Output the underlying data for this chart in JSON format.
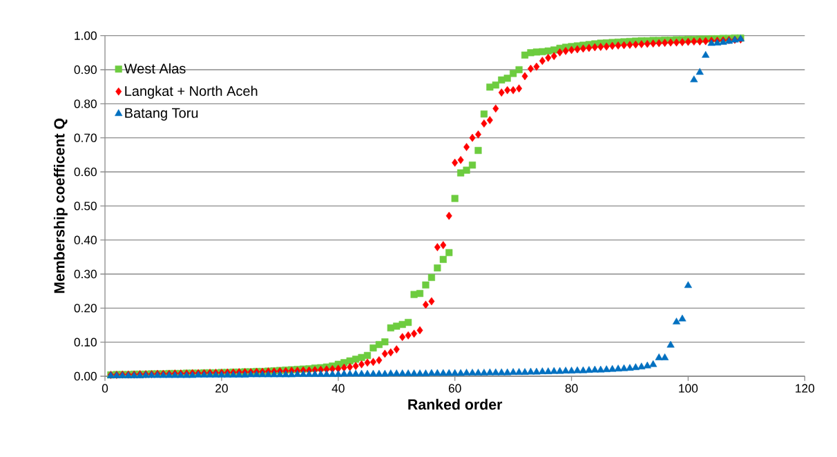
{
  "chart_data": {
    "type": "scatter",
    "xlabel": "Ranked order",
    "ylabel": "Membership coefficent Q",
    "x": [
      1,
      2,
      3,
      4,
      5,
      6,
      7,
      8,
      9,
      10,
      11,
      12,
      13,
      14,
      15,
      16,
      17,
      18,
      19,
      20,
      21,
      22,
      23,
      24,
      25,
      26,
      27,
      28,
      29,
      30,
      31,
      32,
      33,
      34,
      35,
      36,
      37,
      38,
      39,
      40,
      41,
      42,
      43,
      44,
      45,
      46,
      47,
      48,
      49,
      50,
      51,
      52,
      53,
      54,
      55,
      56,
      57,
      58,
      59,
      60,
      61,
      62,
      63,
      64,
      65,
      66,
      67,
      68,
      69,
      70,
      71,
      72,
      73,
      74,
      75,
      76,
      77,
      78,
      79,
      80,
      81,
      82,
      83,
      84,
      85,
      86,
      87,
      88,
      89,
      90,
      91,
      92,
      93,
      94,
      95,
      96,
      97,
      98,
      99,
      100,
      101,
      102,
      103,
      104,
      105,
      106,
      107,
      108,
      109
    ],
    "series": [
      {
        "name": "West Alas",
        "color": "#6dcc3f",
        "marker": "square",
        "values": [
          0.004,
          0.005,
          0.005,
          0.005,
          0.006,
          0.006,
          0.006,
          0.007,
          0.007,
          0.007,
          0.008,
          0.008,
          0.008,
          0.009,
          0.009,
          0.009,
          0.01,
          0.01,
          0.01,
          0.011,
          0.011,
          0.012,
          0.012,
          0.013,
          0.013,
          0.014,
          0.014,
          0.015,
          0.016,
          0.017,
          0.018,
          0.019,
          0.02,
          0.021,
          0.022,
          0.024,
          0.025,
          0.027,
          0.03,
          0.035,
          0.04,
          0.045,
          0.05,
          0.055,
          0.061,
          0.083,
          0.093,
          0.101,
          0.142,
          0.147,
          0.152,
          0.158,
          0.24,
          0.243,
          0.268,
          0.29,
          0.318,
          0.343,
          0.363,
          0.522,
          0.597,
          0.605,
          0.62,
          0.663,
          0.77,
          0.849,
          0.855,
          0.87,
          0.875,
          0.889,
          0.9,
          0.943,
          0.95,
          0.952,
          0.953,
          0.955,
          0.958,
          0.963,
          0.966,
          0.968,
          0.97,
          0.972,
          0.974,
          0.976,
          0.978,
          0.979,
          0.98,
          0.981,
          0.982,
          0.983,
          0.984,
          0.985,
          0.985,
          0.986,
          0.986,
          0.987,
          0.987,
          0.988,
          0.988,
          0.989,
          0.989,
          0.99,
          0.99,
          0.991,
          0.991,
          0.992,
          0.992,
          0.993,
          0.993
        ]
      },
      {
        "name": "Langkat + North Aceh",
        "color": "#ff0000",
        "marker": "diamond",
        "values": [
          0.004,
          0.004,
          0.005,
          0.005,
          0.005,
          0.006,
          0.006,
          0.006,
          0.007,
          0.007,
          0.007,
          0.008,
          0.008,
          0.008,
          0.009,
          0.009,
          0.009,
          0.01,
          0.01,
          0.01,
          0.011,
          0.011,
          0.012,
          0.012,
          0.012,
          0.013,
          0.013,
          0.014,
          0.014,
          0.015,
          0.015,
          0.016,
          0.016,
          0.017,
          0.017,
          0.018,
          0.019,
          0.02,
          0.021,
          0.022,
          0.025,
          0.027,
          0.03,
          0.035,
          0.04,
          0.042,
          0.047,
          0.066,
          0.07,
          0.079,
          0.115,
          0.12,
          0.125,
          0.135,
          0.21,
          0.22,
          0.379,
          0.385,
          0.471,
          0.627,
          0.635,
          0.673,
          0.7,
          0.71,
          0.742,
          0.752,
          0.786,
          0.833,
          0.84,
          0.84,
          0.845,
          0.881,
          0.903,
          0.909,
          0.926,
          0.935,
          0.94,
          0.951,
          0.955,
          0.958,
          0.96,
          0.962,
          0.964,
          0.966,
          0.967,
          0.968,
          0.97,
          0.971,
          0.972,
          0.973,
          0.974,
          0.975,
          0.976,
          0.977,
          0.978,
          0.979,
          0.98,
          0.98,
          0.981,
          0.982,
          0.983,
          0.983,
          0.984,
          0.985,
          0.985,
          0.986,
          0.987,
          0.988,
          0.989
        ]
      },
      {
        "name": "Batang Toru",
        "color": "#0070c0",
        "marker": "triangle",
        "values": [
          0.001,
          0.001,
          0.001,
          0.001,
          0.001,
          0.001,
          0.002,
          0.002,
          0.002,
          0.002,
          0.002,
          0.002,
          0.002,
          0.002,
          0.002,
          0.003,
          0.003,
          0.003,
          0.003,
          0.003,
          0.003,
          0.003,
          0.003,
          0.003,
          0.004,
          0.004,
          0.004,
          0.004,
          0.004,
          0.004,
          0.004,
          0.004,
          0.005,
          0.005,
          0.005,
          0.005,
          0.005,
          0.005,
          0.005,
          0.005,
          0.006,
          0.006,
          0.006,
          0.006,
          0.006,
          0.006,
          0.006,
          0.006,
          0.007,
          0.007,
          0.007,
          0.007,
          0.007,
          0.007,
          0.007,
          0.008,
          0.008,
          0.008,
          0.008,
          0.008,
          0.008,
          0.009,
          0.009,
          0.009,
          0.009,
          0.01,
          0.01,
          0.01,
          0.01,
          0.011,
          0.011,
          0.011,
          0.012,
          0.012,
          0.013,
          0.013,
          0.014,
          0.014,
          0.015,
          0.015,
          0.016,
          0.016,
          0.017,
          0.018,
          0.018,
          0.019,
          0.02,
          0.021,
          0.022,
          0.023,
          0.025,
          0.027,
          0.03,
          0.034,
          0.054,
          0.054,
          0.091,
          0.159,
          0.168,
          0.266,
          0.87,
          0.892,
          0.942,
          0.977,
          0.978,
          0.98,
          0.983,
          0.987,
          0.99
        ]
      }
    ],
    "xlim": [
      0,
      120
    ],
    "xticks": [
      0,
      20,
      40,
      60,
      80,
      100,
      120
    ],
    "ylim": [
      0,
      1
    ],
    "yticks": [
      {
        "value": 0,
        "label": "0.00"
      },
      {
        "value": 0.1,
        "label": "0.10"
      },
      {
        "value": 0.2,
        "label": "0.20"
      },
      {
        "value": 0.3,
        "label": "0.30"
      },
      {
        "value": 0.4,
        "label": "0.40"
      },
      {
        "value": 0.5,
        "label": "0.50"
      },
      {
        "value": 0.6,
        "label": "0.60"
      },
      {
        "value": 0.7,
        "label": "0.70"
      },
      {
        "value": 0.8,
        "label": "0.80"
      },
      {
        "value": 0.9,
        "label": "0.90"
      },
      {
        "value": 1,
        "label": "1.00"
      }
    ],
    "grid": "y",
    "legend": "top left"
  }
}
